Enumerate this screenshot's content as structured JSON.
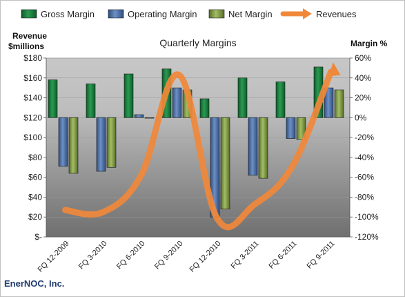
{
  "chart_data": {
    "type": "bar",
    "title": "Quarterly Margins",
    "left_axis_label": [
      "Revenue",
      "$millions"
    ],
    "right_axis_label": "Margin %",
    "footer": "EnerNOC, Inc.",
    "categories": [
      "FQ 12-2009",
      "FQ 3-2010",
      "FQ 6-2010",
      "FQ 9-2010",
      "FQ 12-2010",
      "FQ 3-2011",
      "FQ 6-2011",
      "FQ 9-2011"
    ],
    "left_ticks": [
      "$180",
      "$160",
      "$140",
      "$120",
      "$100",
      "$80",
      "$60",
      "$40",
      "$20",
      "$-"
    ],
    "right_ticks": [
      "60%",
      "40%",
      "20%",
      "0%",
      "-20%",
      "-40%",
      "-60%",
      "-80%",
      "-100%",
      "-120%"
    ],
    "margin_range": [
      -120,
      60
    ],
    "revenue_range": [
      0,
      180
    ],
    "series": [
      {
        "name": "Gross Margin",
        "axis": "right",
        "color": "#1f7a3d",
        "values": [
          38,
          34,
          44,
          49,
          19,
          40,
          36,
          51
        ]
      },
      {
        "name": "Operating Margin",
        "axis": "right",
        "color": "#4a6fa5",
        "values": [
          -49,
          -54,
          3,
          30,
          -100,
          -58,
          -21,
          30
        ]
      },
      {
        "name": "Net Margin",
        "axis": "right",
        "color": "#7a9a3c",
        "values": [
          -56,
          -50,
          0,
          28,
          -92,
          -61,
          -22,
          28
        ]
      },
      {
        "name": "Revenues",
        "axis": "left",
        "type": "line",
        "color": "#f0883a",
        "values": [
          27,
          25,
          62,
          163,
          19,
          33,
          72,
          166
        ]
      }
    ]
  }
}
